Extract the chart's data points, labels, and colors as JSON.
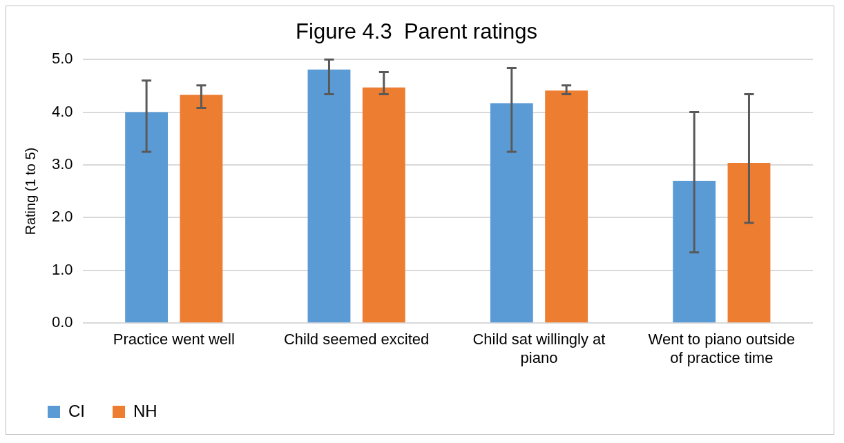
{
  "chart_data": {
    "type": "bar",
    "title": "Figure 4.3  Parent ratings",
    "ylabel": "Rating (1 to 5)",
    "categories": [
      "Practice went well",
      "Child seemed excited",
      "Child sat willingly at piano",
      "Went to piano outside of practice time"
    ],
    "series": [
      {
        "name": "CI",
        "color": "#5b9bd5",
        "values": [
          4.0,
          4.81,
          4.17,
          2.7
        ],
        "errors": [
          [
            3.25,
            4.6
          ],
          [
            4.34,
            5.0
          ],
          [
            3.25,
            4.84
          ],
          [
            1.34,
            4.0
          ]
        ]
      },
      {
        "name": "NH",
        "color": "#ed7d31",
        "values": [
          4.33,
          4.47,
          4.41,
          3.04
        ],
        "errors": [
          [
            4.08,
            4.51
          ],
          [
            4.34,
            4.76
          ],
          [
            4.34,
            4.51
          ],
          [
            1.9,
            4.34
          ]
        ]
      }
    ],
    "ylim": [
      0,
      5
    ],
    "yticks": [
      {
        "value": 0,
        "label": "0.0"
      },
      {
        "value": 1,
        "label": "1.0"
      },
      {
        "value": 2,
        "label": "2.0"
      },
      {
        "value": 3,
        "label": "3.0"
      },
      {
        "value": 4,
        "label": "4.0"
      },
      {
        "value": 5,
        "label": "5.0"
      }
    ],
    "grid": "y",
    "legend": "bottom left"
  }
}
